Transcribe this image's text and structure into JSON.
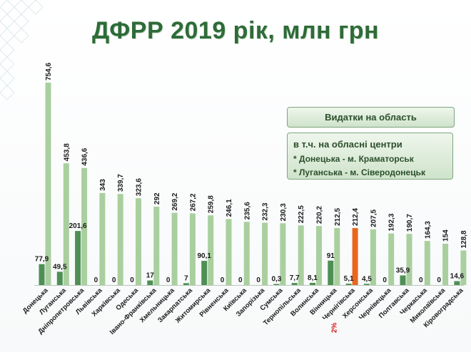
{
  "title": "ДФРР 2019 рік, млн грн",
  "legend": {
    "main": "Видатки на область",
    "sub_title": "в т.ч. на обласні центри",
    "sub_line1": "* Донецька - м. Краматорськ",
    "sub_line2": "* Луганська - м. Сіверодонецьк"
  },
  "colors": {
    "total_bar": "#a9cf9e",
    "highlight_bar": "#e9661f",
    "center_bar": "#4e8f55",
    "note": "#d61f1f",
    "title": "#2e6b39"
  },
  "chart_data": {
    "type": "bar",
    "title": "ДФРР 2019 рік, млн грн",
    "categories": [
      "Донецька",
      "Луганська",
      "Дніпропетровська",
      "Львівська",
      "Харківська",
      "Одеська",
      "Івано-Франківська",
      "Хмельницька",
      "Закарпатська",
      "Житомирська",
      "Рівненська",
      "Київська",
      "Запорізька",
      "Сумська",
      "Тернопільська",
      "Волинська",
      "Вінницька",
      "Чернігівська",
      "Херсонська",
      "Чернівецька",
      "Полтавська",
      "Черкаська",
      "Миколаївська",
      "Кіровоградська"
    ],
    "series": [
      {
        "name": "Видатки на область",
        "values": [
          754.6,
          453.8,
          436.6,
          343,
          339.7,
          323.6,
          292,
          269.2,
          267.2,
          259.8,
          246.1,
          235.6,
          232.3,
          230.3,
          222.5,
          220.2,
          212.5,
          212.4,
          207.5,
          192.3,
          190.7,
          164.3,
          154,
          128.8
        ],
        "labels": [
          "754,6",
          "453,8",
          "436,6",
          "343",
          "339,7",
          "323,6",
          "292",
          "269,2",
          "267,2",
          "259,8",
          "246,1",
          "235,6",
          "232,3",
          "230,3",
          "222,5",
          "220,2",
          "212,5",
          "212,4",
          "207,5",
          "192,3",
          "190,7",
          "164,3",
          "154",
          "128,8"
        ]
      },
      {
        "name": "в т.ч. на обласні центри",
        "values": [
          77.9,
          49.5,
          201.6,
          0,
          0,
          0,
          17,
          0,
          7,
          90.1,
          0,
          0,
          0,
          0.3,
          7.7,
          8.1,
          91,
          5.1,
          4.5,
          0,
          35.9,
          0,
          0,
          14.6
        ],
        "labels": [
          "77,9",
          "49,5",
          "201,6",
          "0",
          "0",
          "0",
          "17",
          "0",
          "7",
          "90,1",
          "0",
          "0",
          "0",
          "0,3",
          "7,7",
          "8,1",
          "91",
          "5,1",
          "4,5",
          "0",
          "35,9",
          "0",
          "0",
          "14,6"
        ]
      }
    ],
    "highlight_category": "Чернігівська",
    "annotation": "2%",
    "ylim": [
      0,
      780
    ],
    "grid": false
  }
}
